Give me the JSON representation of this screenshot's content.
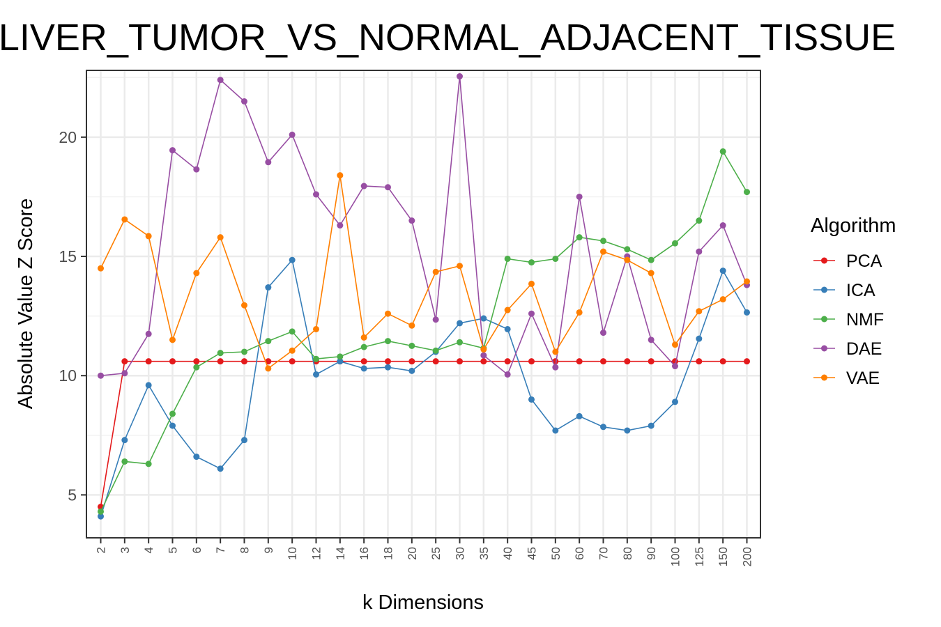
{
  "chart_data": {
    "type": "line",
    "title": "D_LIVER_TUMOR_VS_NORMAL_ADJACENT_TISSUE",
    "xlabel": "k Dimensions",
    "ylabel": "Absolute Value Z Score",
    "ylim": [
      3.2,
      22.8
    ],
    "y_ticks": [
      5,
      10,
      15,
      20
    ],
    "grid": true,
    "legend": {
      "title": "Algorithm",
      "position": "right"
    },
    "categories": [
      "2",
      "3",
      "4",
      "5",
      "6",
      "7",
      "8",
      "9",
      "10",
      "12",
      "14",
      "16",
      "18",
      "20",
      "25",
      "30",
      "35",
      "40",
      "45",
      "50",
      "60",
      "70",
      "80",
      "90",
      "100",
      "125",
      "150",
      "200"
    ],
    "series": [
      {
        "name": "PCA",
        "color": "#e41a1c",
        "values": [
          4.5,
          10.6,
          10.6,
          10.6,
          10.6,
          10.6,
          10.6,
          10.6,
          10.6,
          10.6,
          10.6,
          10.6,
          10.6,
          10.6,
          10.6,
          10.6,
          10.6,
          10.6,
          10.6,
          10.6,
          10.6,
          10.6,
          10.6,
          10.6,
          10.6,
          10.6,
          10.6,
          10.6
        ]
      },
      {
        "name": "ICA",
        "color": "#377eb8",
        "values": [
          4.1,
          7.3,
          9.6,
          7.9,
          6.6,
          6.1,
          7.3,
          13.7,
          14.85,
          10.05,
          10.6,
          10.3,
          10.35,
          10.2,
          11.0,
          12.2,
          12.4,
          11.95,
          9.0,
          7.7,
          8.3,
          7.85,
          7.7,
          7.9,
          8.9,
          11.55,
          14.4,
          12.65
        ]
      },
      {
        "name": "NMF",
        "color": "#4daf4a",
        "values": [
          4.3,
          6.4,
          6.3,
          8.4,
          10.35,
          10.95,
          11.0,
          11.45,
          11.85,
          10.7,
          10.8,
          11.2,
          11.45,
          11.25,
          11.05,
          11.4,
          11.15,
          14.9,
          14.75,
          14.9,
          15.8,
          15.65,
          15.3,
          14.85,
          15.55,
          16.5,
          19.4,
          17.7
        ]
      },
      {
        "name": "DAE",
        "color": "#984ea3",
        "values": [
          10.0,
          10.1,
          11.75,
          19.45,
          18.65,
          22.4,
          21.5,
          18.95,
          20.1,
          17.6,
          16.3,
          17.95,
          17.9,
          16.5,
          12.35,
          22.55,
          10.85,
          10.05,
          12.6,
          10.35,
          17.5,
          11.8,
          15.0,
          11.5,
          10.4,
          15.2,
          16.3,
          13.8
        ]
      },
      {
        "name": "VAE",
        "color": "#ff7f00",
        "values": [
          14.5,
          16.55,
          15.85,
          11.5,
          14.3,
          15.8,
          12.95,
          10.3,
          11.05,
          11.95,
          18.4,
          11.6,
          12.6,
          12.1,
          14.35,
          14.6,
          11.1,
          12.75,
          13.85,
          11.0,
          12.65,
          15.2,
          14.85,
          14.3,
          11.3,
          12.7,
          13.2,
          13.95
        ]
      }
    ]
  }
}
